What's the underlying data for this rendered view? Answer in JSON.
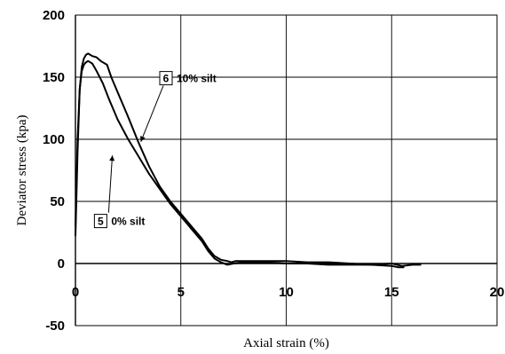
{
  "chart_data": {
    "type": "line",
    "xlabel": "Axial strain (%)",
    "ylabel": "Deviator stress (kpa)",
    "xlim": [
      0,
      20
    ],
    "ylim": [
      -50,
      200
    ],
    "x_ticks": [
      "0",
      "5",
      "10",
      "15",
      "20"
    ],
    "y_ticks": [
      "-50",
      "0",
      "50",
      "100",
      "150",
      "200"
    ],
    "grid": true,
    "series": [
      {
        "name": "10% silt",
        "number": "6",
        "x": [
          0.0,
          0.1,
          0.2,
          0.3,
          0.4,
          0.5,
          0.6,
          0.8,
          1.0,
          1.2,
          1.5,
          1.7,
          2.0,
          2.5,
          3.0,
          3.5,
          4.0,
          4.5,
          5.0,
          5.5,
          6.0,
          6.3,
          6.6,
          6.9,
          7.2,
          7.4,
          7.6,
          8.0,
          9.0,
          10.0,
          11.0,
          12.0,
          13.0,
          14.0,
          15.0,
          15.5,
          16.0,
          16.4
        ],
        "y": [
          22,
          90,
          140,
          158,
          165,
          168,
          169,
          167,
          166,
          163,
          160,
          150,
          138,
          118,
          97,
          78,
          62,
          50,
          40,
          30,
          20,
          12,
          6,
          3,
          2,
          1,
          2,
          2,
          2,
          2,
          1,
          1,
          0,
          -1,
          0,
          -2,
          -1,
          -1
        ]
      },
      {
        "name": "0% silt",
        "number": "5",
        "x": [
          0.0,
          0.1,
          0.2,
          0.3,
          0.4,
          0.5,
          0.6,
          0.8,
          1.0,
          1.3,
          1.6,
          2.0,
          2.5,
          3.0,
          3.5,
          4.0,
          4.5,
          5.0,
          5.5,
          6.0,
          6.3,
          6.6,
          6.9,
          7.2,
          7.5,
          8.0,
          9.0,
          10.0,
          11.0,
          12.0,
          13.0,
          14.0,
          15.0,
          15.3,
          15.6
        ],
        "y": [
          30,
          100,
          140,
          155,
          160,
          162,
          163,
          161,
          155,
          145,
          132,
          116,
          100,
          86,
          72,
          60,
          48,
          38,
          28,
          18,
          10,
          4,
          1,
          -1,
          0,
          1,
          1,
          0,
          0,
          -1,
          -1,
          -1,
          -2,
          -3,
          -3
        ]
      }
    ],
    "annotations": [
      {
        "series": "10% silt",
        "number": "6",
        "text": "10% silt",
        "label_at": [
          4.0,
          146
        ],
        "arrow_to": [
          3.1,
          98
        ]
      },
      {
        "series": "0% silt",
        "number": "5",
        "text": "0% silt",
        "label_at": [
          0.9,
          31
        ],
        "arrow_to": [
          1.75,
          87
        ]
      }
    ]
  }
}
